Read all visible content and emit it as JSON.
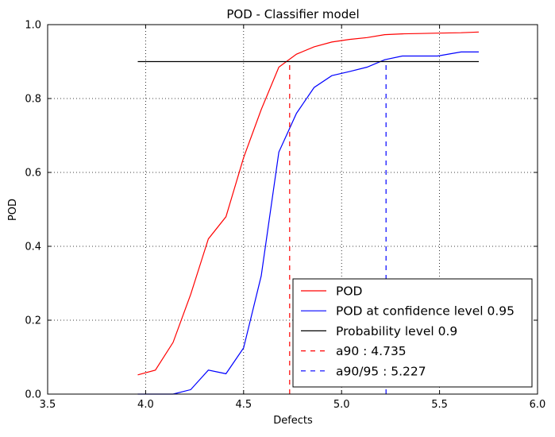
{
  "chart_data": {
    "type": "line",
    "title": "POD - Classifier model",
    "xlabel": "Defects",
    "ylabel": "POD",
    "xlim": [
      3.5,
      6.0
    ],
    "ylim": [
      0.0,
      1.0
    ],
    "xticks": [
      3.5,
      4.0,
      4.5,
      5.0,
      5.5,
      6.0
    ],
    "xtick_labels": [
      "3.5",
      "4.0",
      "4.5",
      "5.0",
      "5.5",
      "6.0"
    ],
    "yticks": [
      0.0,
      0.2,
      0.4,
      0.6,
      0.8,
      1.0
    ],
    "ytick_labels": [
      "0.0",
      "0.2",
      "0.4",
      "0.6",
      "0.8",
      "1.0"
    ],
    "grid": true,
    "legend_position": "lower-right",
    "series": [
      {
        "name": "POD",
        "color": "#ff0000",
        "style": "solid",
        "x": [
          3.96,
          4.05,
          4.14,
          4.23,
          4.32,
          4.41,
          4.5,
          4.59,
          4.68,
          4.77,
          4.86,
          4.95,
          5.04,
          5.13,
          5.22,
          5.31,
          5.4,
          5.49,
          5.61,
          5.7
        ],
        "y": [
          0.052,
          0.065,
          0.14,
          0.27,
          0.42,
          0.48,
          0.64,
          0.77,
          0.885,
          0.92,
          0.94,
          0.953,
          0.96,
          0.965,
          0.973,
          0.975,
          0.976,
          0.977,
          0.978,
          0.98
        ]
      },
      {
        "name": "POD at confidence level 0.95",
        "color": "#0000ff",
        "style": "solid",
        "x": [
          3.96,
          4.05,
          4.14,
          4.23,
          4.32,
          4.41,
          4.5,
          4.59,
          4.68,
          4.77,
          4.86,
          4.95,
          5.04,
          5.13,
          5.22,
          5.31,
          5.4,
          5.49,
          5.61,
          5.7
        ],
        "y": [
          0.0,
          0.0,
          0.0,
          0.012,
          0.065,
          0.055,
          0.125,
          0.32,
          0.655,
          0.76,
          0.83,
          0.862,
          0.873,
          0.885,
          0.905,
          0.915,
          0.915,
          0.915,
          0.926,
          0.926
        ]
      },
      {
        "name": "Probability level 0.9",
        "color": "#000000",
        "style": "solid",
        "x": [
          3.96,
          5.7
        ],
        "y": [
          0.9,
          0.9
        ]
      },
      {
        "name": "a90 : 4.735",
        "color": "#ff0000",
        "style": "dashed",
        "x": [
          4.735,
          4.735
        ],
        "y": [
          0.0,
          0.9
        ]
      },
      {
        "name": "a90/95 : 5.227",
        "color": "#0000ff",
        "style": "dashed",
        "x": [
          5.227,
          5.227
        ],
        "y": [
          0.0,
          0.9
        ]
      }
    ]
  }
}
